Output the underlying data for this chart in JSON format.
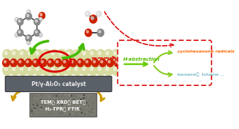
{
  "bg_color": "#ffffff",
  "catalyst_label": "Pt/γ-Al₂O₃ catalyst",
  "char_line1": "TEM， XRD， BET，",
  "char_line2": "H₂-TPR， FTIR",
  "mechanism_label": "H-abstraction",
  "product1": "cyclohexanone radicals",
  "product2": "benzene，  toluene ...",
  "box_edge": "#dd1111",
  "orange_text": "#ff6600",
  "teal_text": "#3399aa",
  "green_arrow": "#44bb00",
  "yellow_arrow": "#cc9900",
  "surf_cream": "#d8dba0",
  "surf_red": "#cc2200",
  "catalyst_bg": "#5a6068",
  "catalyst_text": "#eeeeee",
  "micro_bg": "#787870"
}
